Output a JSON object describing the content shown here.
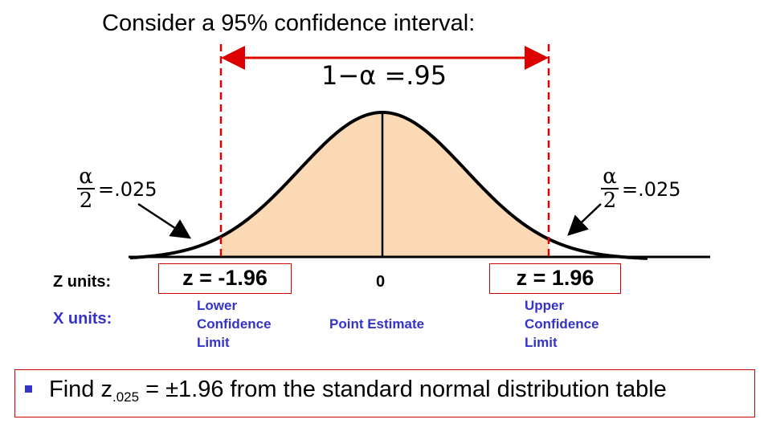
{
  "title": "Consider a 95% confidence interval:",
  "ci_formula": "1−α =.95",
  "left_tail": {
    "numerator": "α",
    "denominator": "2",
    "value": "=.025"
  },
  "right_tail": {
    "numerator": "α",
    "denominator": "2",
    "value": "=.025"
  },
  "z_units_label": "Z units:",
  "x_units_label": "X units:",
  "z_lower": "z = -1.96",
  "z_center": "0",
  "z_upper": "z = 1.96",
  "lower_limit": [
    "Lower",
    "Confidence",
    "Limit"
  ],
  "point_estimate": "Point Estimate",
  "upper_limit": [
    "Upper",
    "Confidence",
    "Limit"
  ],
  "note": {
    "prefix": "Find z",
    "subscript": ".025",
    "suffix": " = ±1.96 from the standard normal distribution table"
  },
  "colors": {
    "fill": "#fbd9b5",
    "dashed": "#dd0000",
    "blue": "#3333cc"
  }
}
